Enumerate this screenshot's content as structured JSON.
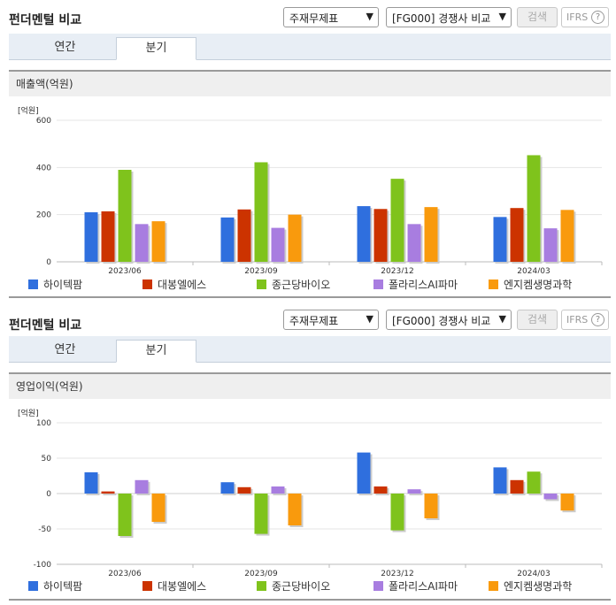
{
  "sections": [
    {
      "title": "펀더멘털 비교",
      "select_statement": "주재무제표",
      "select_compare": "[FG000] 경쟁사 비교",
      "search_label": "검색",
      "ifrs_label": "IFRS",
      "tabs": [
        "연간",
        "분기"
      ],
      "active_tab": "분기",
      "panel_title": "매출액(억원)",
      "unit_label": "[억원]"
    },
    {
      "title": "펀더멘털 비교",
      "select_statement": "주재무제표",
      "select_compare": "[FG000] 경쟁사 비교",
      "search_label": "검색",
      "ifrs_label": "IFRS",
      "tabs": [
        "연간",
        "분기"
      ],
      "active_tab": "분기",
      "panel_title": "영업이익(억원)",
      "unit_label": "[억원]"
    }
  ],
  "colors": {
    "하이텍팜": "#2f6fde",
    "대봉엘에스": "#cc3300",
    "종근당바이오": "#7fc31c",
    "폴라리스AI파마": "#a87de0",
    "엔지켐생명과학": "#f99a0d"
  },
  "chart_data": [
    {
      "type": "bar",
      "title": "매출액(억원)",
      "unit": "[억원]",
      "categories": [
        "2023/06",
        "2023/09",
        "2023/12",
        "2024/03"
      ],
      "ylim": [
        0,
        600
      ],
      "yticks": [
        0,
        200,
        400,
        600
      ],
      "grid": true,
      "legend": "bottom",
      "series": [
        {
          "name": "하이텍팜",
          "values": [
            210,
            188,
            236,
            190
          ]
        },
        {
          "name": "대봉엘에스",
          "values": [
            214,
            222,
            224,
            228
          ]
        },
        {
          "name": "종근당바이오",
          "values": [
            390,
            422,
            352,
            452
          ]
        },
        {
          "name": "폴라리스AI파마",
          "values": [
            160,
            144,
            160,
            142
          ]
        },
        {
          "name": "엔지켐생명과학",
          "values": [
            172,
            200,
            232,
            220
          ]
        }
      ]
    },
    {
      "type": "bar",
      "title": "영업이익(억원)",
      "unit": "[억원]",
      "categories": [
        "2023/06",
        "2023/09",
        "2023/12",
        "2024/03"
      ],
      "ylim": [
        -100,
        100
      ],
      "yticks": [
        -100,
        -50,
        0,
        50,
        100
      ],
      "grid": true,
      "legend": "bottom",
      "series": [
        {
          "name": "하이텍팜",
          "values": [
            30,
            16,
            58,
            37
          ]
        },
        {
          "name": "대봉엘에스",
          "values": [
            3,
            9,
            10,
            19
          ]
        },
        {
          "name": "종근당바이오",
          "values": [
            -60,
            -57,
            -52,
            31
          ]
        },
        {
          "name": "폴라리스AI파마",
          "values": [
            19,
            10,
            6,
            -8
          ]
        },
        {
          "name": "엔지켐생명과학",
          "values": [
            -40,
            -45,
            -35,
            -24
          ]
        }
      ]
    }
  ]
}
